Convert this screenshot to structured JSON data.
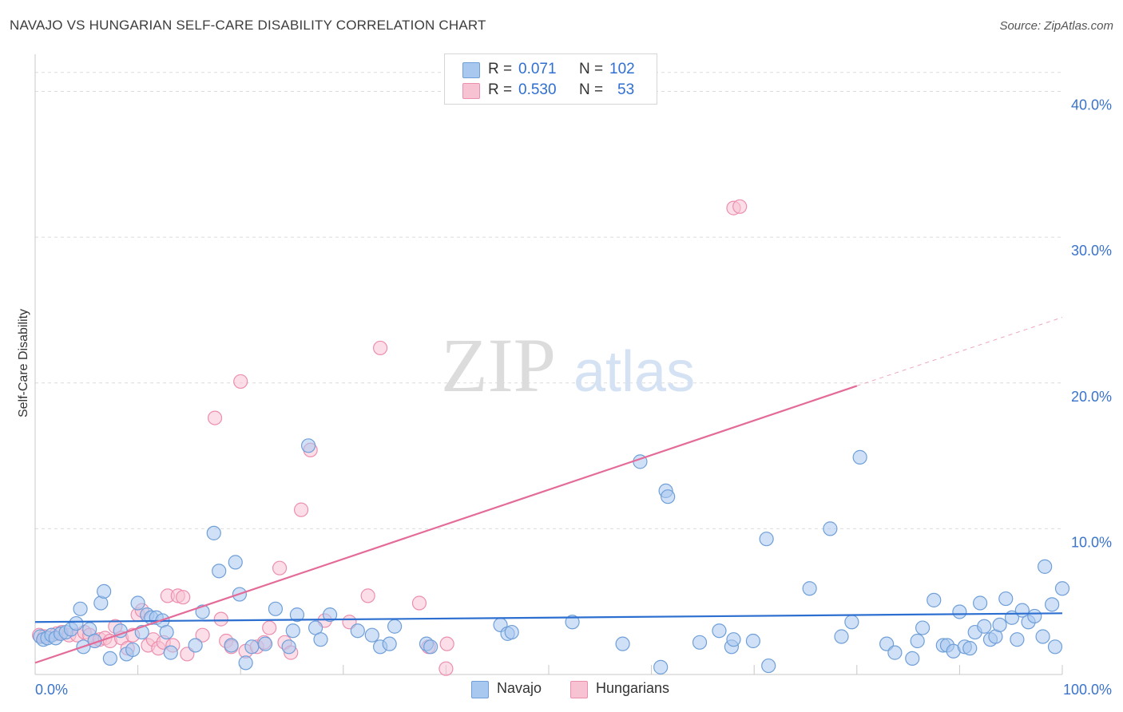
{
  "title": "NAVAJO VS HUNGARIAN SELF-CARE DISABILITY CORRELATION CHART",
  "source": "Source: ZipAtlas.com",
  "watermark": {
    "zip": "ZIP",
    "atlas": "atlas"
  },
  "legend": {
    "navajo": {
      "r_label": "R =",
      "r_value": "0.071",
      "n_label": "N =",
      "n_value": "102"
    },
    "hungarians": {
      "r_label": "R =",
      "r_value": "0.530",
      "n_label": "N =",
      "n_value": "53"
    }
  },
  "colors": {
    "navajo_fill": "#a9c8f0",
    "navajo_stroke": "#6f9fd8",
    "navajo_line": "#2c6fd0",
    "hungarian_fill": "#f7c3d3",
    "hungarian_stroke": "#ec8fae",
    "hungarian_line": "#e46b98",
    "tick_label": "#3a73c9",
    "grid": "#dcdcdc"
  },
  "chart_data": {
    "type": "scatter",
    "title": "NAVAJO VS HUNGARIAN SELF-CARE DISABILITY CORRELATION CHART",
    "xlabel": "",
    "ylabel": "Self-Care Disability",
    "xlim": [
      0,
      100
    ],
    "ylim": [
      0,
      42
    ],
    "x_tick_labels": [
      {
        "value": 0,
        "label": "0.0%"
      },
      {
        "value": 100,
        "label": "100.0%"
      }
    ],
    "y_tick_labels": [
      {
        "value": 10,
        "label": "10.0%"
      },
      {
        "value": 20,
        "label": "20.0%"
      },
      {
        "value": 30,
        "label": "30.0%"
      },
      {
        "value": 40,
        "label": "40.0%"
      }
    ],
    "grid": true,
    "legend_position": "top-center",
    "series": [
      {
        "name": "Navajo",
        "trend": {
          "x0": 0,
          "y0": 3.6,
          "x1": 100,
          "y1": 4.2
        },
        "points": [
          [
            0.5,
            2.6
          ],
          [
            0.8,
            2.4
          ],
          [
            1.2,
            2.5
          ],
          [
            1.6,
            2.7
          ],
          [
            2.0,
            2.5
          ],
          [
            2.5,
            2.8
          ],
          [
            3.0,
            2.9
          ],
          [
            3.5,
            3.1
          ],
          [
            4.0,
            3.5
          ],
          [
            4.4,
            4.5
          ],
          [
            4.7,
            1.9
          ],
          [
            5.3,
            3.1
          ],
          [
            5.8,
            2.3
          ],
          [
            6.4,
            4.9
          ],
          [
            6.7,
            5.7
          ],
          [
            7.3,
            1.1
          ],
          [
            8.3,
            3.0
          ],
          [
            8.9,
            1.4
          ],
          [
            9.5,
            1.7
          ],
          [
            10.0,
            4.9
          ],
          [
            10.4,
            2.9
          ],
          [
            10.9,
            4.1
          ],
          [
            11.3,
            3.9
          ],
          [
            11.8,
            3.9
          ],
          [
            12.4,
            3.7
          ],
          [
            12.8,
            2.9
          ],
          [
            13.2,
            1.5
          ],
          [
            15.6,
            2.0
          ],
          [
            16.3,
            4.3
          ],
          [
            17.4,
            9.7
          ],
          [
            17.9,
            7.1
          ],
          [
            19.1,
            2.0
          ],
          [
            19.5,
            7.7
          ],
          [
            19.9,
            5.5
          ],
          [
            20.5,
            0.8
          ],
          [
            21.1,
            1.9
          ],
          [
            22.4,
            2.1
          ],
          [
            23.4,
            4.5
          ],
          [
            24.7,
            1.9
          ],
          [
            25.1,
            3.0
          ],
          [
            25.5,
            4.1
          ],
          [
            26.6,
            15.7
          ],
          [
            27.3,
            3.2
          ],
          [
            27.8,
            2.4
          ],
          [
            28.7,
            4.1
          ],
          [
            31.4,
            3.0
          ],
          [
            32.8,
            2.7
          ],
          [
            33.6,
            1.9
          ],
          [
            34.5,
            2.1
          ],
          [
            35.0,
            3.3
          ],
          [
            38.1,
            2.1
          ],
          [
            38.5,
            1.9
          ],
          [
            45.3,
            3.4
          ],
          [
            46.0,
            2.8
          ],
          [
            46.4,
            2.9
          ],
          [
            52.3,
            3.6
          ],
          [
            57.2,
            2.1
          ],
          [
            58.9,
            14.6
          ],
          [
            60.9,
            0.5
          ],
          [
            61.4,
            12.6
          ],
          [
            61.6,
            12.2
          ],
          [
            64.7,
            2.2
          ],
          [
            66.6,
            3.0
          ],
          [
            67.8,
            1.9
          ],
          [
            68.0,
            2.4
          ],
          [
            69.9,
            2.3
          ],
          [
            71.2,
            9.3
          ],
          [
            71.4,
            0.6
          ],
          [
            75.4,
            5.9
          ],
          [
            77.4,
            10.0
          ],
          [
            78.5,
            2.6
          ],
          [
            79.5,
            3.6
          ],
          [
            80.3,
            14.9
          ],
          [
            82.9,
            2.1
          ],
          [
            83.7,
            1.5
          ],
          [
            85.4,
            1.1
          ],
          [
            85.9,
            2.3
          ],
          [
            86.4,
            3.2
          ],
          [
            87.5,
            5.1
          ],
          [
            88.4,
            2.0
          ],
          [
            88.8,
            2.0
          ],
          [
            89.4,
            1.6
          ],
          [
            90.0,
            4.3
          ],
          [
            90.5,
            1.9
          ],
          [
            91.0,
            1.8
          ],
          [
            91.5,
            2.9
          ],
          [
            92.0,
            4.9
          ],
          [
            92.4,
            3.3
          ],
          [
            93.0,
            2.4
          ],
          [
            93.5,
            2.6
          ],
          [
            93.9,
            3.4
          ],
          [
            94.5,
            5.2
          ],
          [
            95.1,
            3.9
          ],
          [
            95.6,
            2.4
          ],
          [
            96.1,
            4.4
          ],
          [
            96.7,
            3.6
          ],
          [
            97.3,
            4.0
          ],
          [
            98.1,
            2.6
          ],
          [
            98.3,
            7.4
          ],
          [
            99.0,
            4.8
          ],
          [
            99.3,
            1.9
          ],
          [
            100.0,
            5.9
          ]
        ]
      },
      {
        "name": "Hungarians",
        "trend": {
          "x0": 0,
          "y0": 0.8,
          "x1": 80,
          "y1": 19.8,
          "dash_x1": 100,
          "dash_y1": 24.5
        },
        "points": [
          [
            0.4,
            2.7
          ],
          [
            0.9,
            2.6
          ],
          [
            1.6,
            2.7
          ],
          [
            2.1,
            2.8
          ],
          [
            2.6,
            2.9
          ],
          [
            3.3,
            2.7
          ],
          [
            4.1,
            2.7
          ],
          [
            4.8,
            2.9
          ],
          [
            5.3,
            2.7
          ],
          [
            5.8,
            2.3
          ],
          [
            6.3,
            2.4
          ],
          [
            6.8,
            2.5
          ],
          [
            7.3,
            2.3
          ],
          [
            7.8,
            3.3
          ],
          [
            8.4,
            2.5
          ],
          [
            9.0,
            1.8
          ],
          [
            9.5,
            2.7
          ],
          [
            10.0,
            4.1
          ],
          [
            10.4,
            4.4
          ],
          [
            11.0,
            2.0
          ],
          [
            11.5,
            2.4
          ],
          [
            12.0,
            1.8
          ],
          [
            12.5,
            2.2
          ],
          [
            12.9,
            5.4
          ],
          [
            13.4,
            2.0
          ],
          [
            13.9,
            5.4
          ],
          [
            14.4,
            5.3
          ],
          [
            14.8,
            1.4
          ],
          [
            16.3,
            2.7
          ],
          [
            17.5,
            17.6
          ],
          [
            18.1,
            3.8
          ],
          [
            18.6,
            2.3
          ],
          [
            19.1,
            1.9
          ],
          [
            20.0,
            20.1
          ],
          [
            20.5,
            1.6
          ],
          [
            21.6,
            1.9
          ],
          [
            22.3,
            2.2
          ],
          [
            22.8,
            3.2
          ],
          [
            23.8,
            7.3
          ],
          [
            24.3,
            2.2
          ],
          [
            24.9,
            1.5
          ],
          [
            25.9,
            11.3
          ],
          [
            26.8,
            15.4
          ],
          [
            28.2,
            3.7
          ],
          [
            30.6,
            3.6
          ],
          [
            32.4,
            5.4
          ],
          [
            33.6,
            22.4
          ],
          [
            37.4,
            4.9
          ],
          [
            38.3,
            1.9
          ],
          [
            40.0,
            0.4
          ],
          [
            40.1,
            2.1
          ],
          [
            68.0,
            32.0
          ],
          [
            68.6,
            32.1
          ]
        ]
      }
    ]
  },
  "bottom_legend": {
    "navajo": "Navajo",
    "hungarians": "Hungarians"
  }
}
